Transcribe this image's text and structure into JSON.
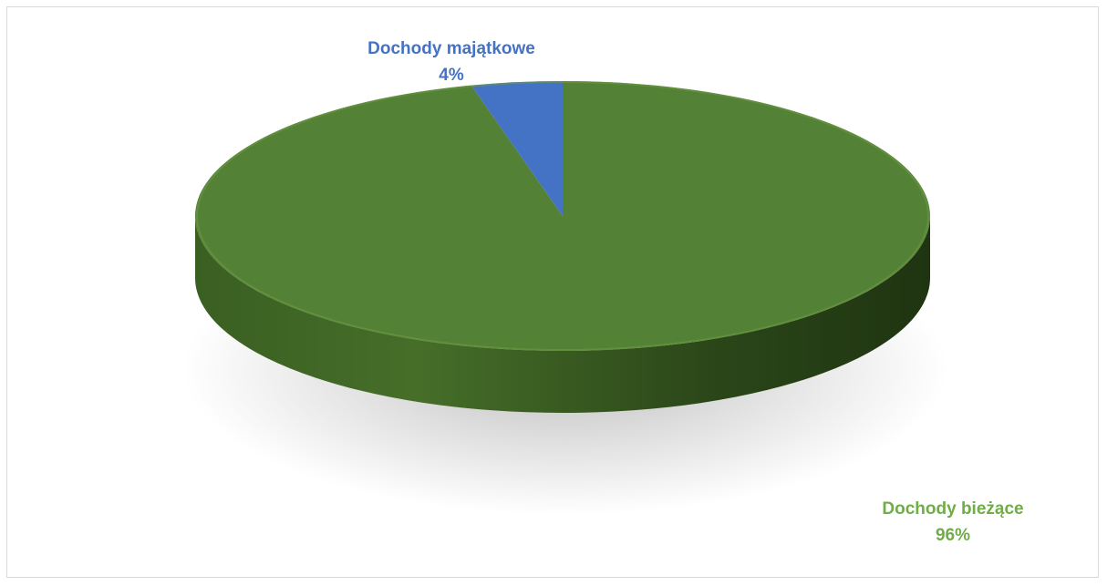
{
  "chart_data": {
    "type": "pie",
    "style": "3d",
    "slices": [
      {
        "label": "Dochody bieżące",
        "value": 96,
        "percent_label": "96%",
        "color": "#538135",
        "label_color": "#70ad47"
      },
      {
        "label": "Dochody majątkowe",
        "value": 4,
        "percent_label": "4%",
        "color": "#4472c4",
        "label_color": "#4472c4"
      }
    ],
    "title": "",
    "legend": "none"
  }
}
